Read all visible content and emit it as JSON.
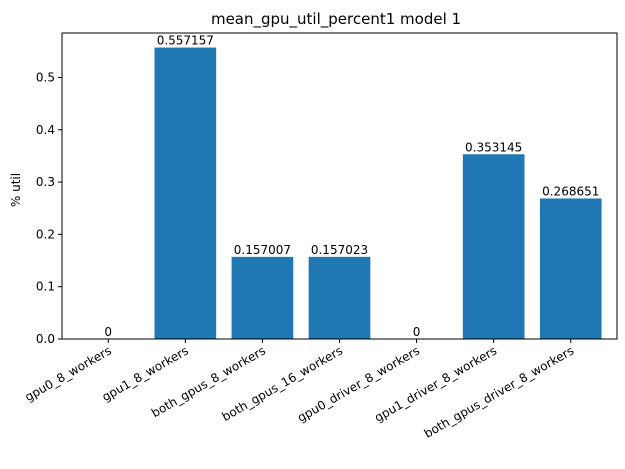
{
  "chart_data": {
    "type": "bar",
    "title": "mean_gpu_util_percent1 model 1",
    "xlabel": "",
    "ylabel": "% util",
    "categories": [
      "gpu0_8_workers",
      "gpu1_8_workers",
      "both_gpus_8_workers",
      "both_gpus_16_workers",
      "gpu0_driver_8_workers",
      "gpu1_driver_8_workers",
      "both_gpus_driver_8_workers"
    ],
    "values": [
      0,
      0.557157,
      0.157007,
      0.157023,
      0,
      0.353145,
      0.268651
    ],
    "data_labels": [
      "0",
      "0.557157",
      "0.157007",
      "0.157023",
      "0",
      "0.353145",
      "0.268651"
    ],
    "yticks": [
      0.0,
      0.1,
      0.2,
      0.3,
      0.4,
      0.5
    ],
    "ytick_labels": [
      "0.0",
      "0.1",
      "0.2",
      "0.3",
      "0.4",
      "0.5"
    ],
    "ylim": [
      0,
      0.585
    ],
    "grid": false,
    "bar_color": "#1f77b4"
  }
}
